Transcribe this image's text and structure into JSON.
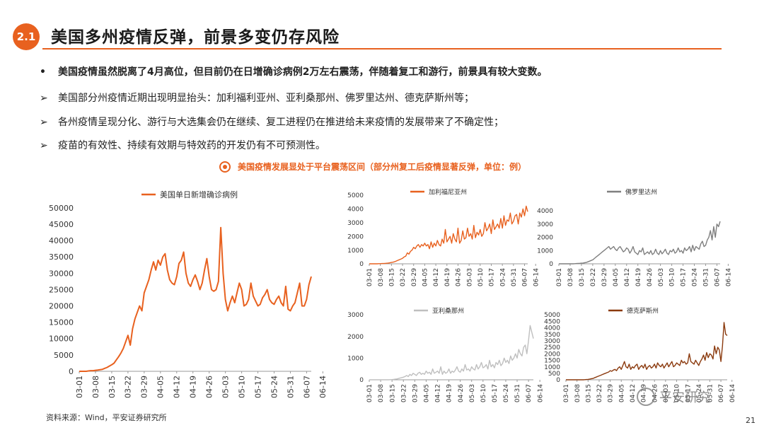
{
  "header": {
    "section_number": "2.1",
    "title": "美国多州疫情反弹，前景多变仍存风险"
  },
  "bullets": {
    "main_mark": "•",
    "main": "美国疫情虽然脱离了4月高位，但目前仍在日增确诊病例2万左右震荡，伴随着复工和游行，前景具有较大变数。",
    "sub_mark": "➢",
    "sub": [
      "美国部分州疫情近期出现明显抬头：加利福利亚州、亚利桑那州、佛罗里达州、德克萨斯州等；",
      "各州疫情呈现分化、游行与大选集会仍在继续、复工进程仍在推进给未来疫情的发展带来了不确定性；",
      "疫苗的有效性、持续有效期与特效药的开发仍有不可预测性。"
    ]
  },
  "chart_heading": "美国疫情发展显处于平台震荡区间（部分州复工后疫情显著反弹，单位：例）",
  "source": "资料来源：Wind，平安证券研究所",
  "page_number": "21",
  "watermark": "平安研究",
  "chart_data": [
    {
      "id": "us",
      "type": "line",
      "title": "",
      "legend": "美国单日新增确诊病例",
      "color": "#e8611f",
      "ylim": [
        0,
        50000
      ],
      "yticks": [
        0,
        5000,
        10000,
        15000,
        20000,
        25000,
        30000,
        35000,
        40000,
        45000,
        50000
      ],
      "xticks": [
        "03-01",
        "03-08",
        "03-15",
        "03-22",
        "03-29",
        "04-05",
        "04-12",
        "04-19",
        "04-26",
        "05-03",
        "05-10",
        "05-17",
        "05-24",
        "05-31",
        "06-07",
        "06-14"
      ],
      "x_start": "03-01",
      "values": [
        0,
        0,
        0,
        0,
        100,
        200,
        200,
        300,
        400,
        500,
        600,
        900,
        1200,
        1600,
        2000,
        2500,
        3500,
        4500,
        5600,
        7000,
        9000,
        11000,
        8000,
        13000,
        16000,
        18000,
        20000,
        18500,
        24000,
        26000,
        28000,
        31000,
        33500,
        31000,
        34000,
        32500,
        35000,
        36000,
        31000,
        28000,
        27000,
        26500,
        29000,
        33000,
        34000,
        36500,
        30000,
        27000,
        26000,
        28000,
        29500,
        27500,
        25000,
        27000,
        31000,
        34500,
        29000,
        25000,
        24500,
        25000,
        27500,
        44000,
        30000,
        22000,
        18500,
        21000,
        23000,
        21000,
        24000,
        27000,
        25000,
        20000,
        20500,
        22000,
        27000,
        23000,
        21500,
        20000,
        20500,
        22500,
        23500,
        25000,
        22000,
        21000,
        20500,
        22000,
        23000,
        21000,
        20000,
        26000,
        19000,
        18500,
        20000,
        21000,
        24000,
        27000,
        20000,
        20000,
        22000,
        26500,
        29000
      ],
      "ylabel": "",
      "xlabel": ""
    },
    {
      "id": "ca",
      "type": "line",
      "legend": "加利福尼亚州",
      "color": "#e8611f",
      "ylim": [
        0,
        5000
      ],
      "yticks": [
        0,
        1000,
        2000,
        3000,
        4000,
        5000
      ],
      "xticks": [
        "03-01",
        "03-08",
        "03-15",
        "03-22",
        "03-29",
        "04-05",
        "04-12",
        "04-19",
        "04-26",
        "05-03",
        "05-10",
        "05-17",
        "05-24",
        "05-31",
        "06-07",
        "06-14"
      ],
      "x_start": "03-01",
      "values": [
        0,
        0,
        0,
        0,
        0,
        0,
        10,
        10,
        20,
        20,
        30,
        40,
        50,
        70,
        100,
        120,
        150,
        200,
        250,
        300,
        350,
        400,
        500,
        550,
        800,
        700,
        900,
        1000,
        1200,
        1100,
        1300,
        1400,
        1200,
        1400,
        1300,
        1500,
        1300,
        1400,
        1100,
        1600,
        1200,
        1500,
        1300,
        1700,
        1400,
        1300,
        1800,
        1500,
        2500,
        1600,
        1800,
        2000,
        1500,
        2200,
        1800,
        1600,
        2600,
        1500,
        1700,
        2400,
        1800,
        1900,
        2600,
        2000,
        2200,
        1800,
        2800,
        1900,
        2300,
        2100,
        2500,
        2000,
        2200,
        3000,
        2400,
        2600,
        2900,
        2200,
        3200,
        2500,
        2700,
        2900,
        2600,
        3300,
        2600,
        3500,
        2800,
        3200,
        3100,
        3700,
        2900,
        3100,
        3500,
        3600,
        2900,
        3700,
        3400,
        4000,
        3500,
        4200,
        3800
      ],
      "ylabel": "",
      "xlabel": ""
    },
    {
      "id": "fl",
      "type": "line",
      "legend": "佛罗里达州",
      "color": "#7f7f7f",
      "ylim": [
        0,
        4000
      ],
      "yticks": [
        0,
        1000,
        2000,
        3000,
        4000
      ],
      "xticks": [
        "03-01",
        "03-08",
        "03-15",
        "03-22",
        "03-29",
        "04-05",
        "04-12",
        "04-19",
        "04-26",
        "05-03",
        "05-10",
        "05-17",
        "05-24",
        "05-31",
        "06-07",
        "06-14"
      ],
      "x_start": "03-01",
      "values": [
        0,
        0,
        0,
        0,
        0,
        0,
        0,
        0,
        0,
        0,
        10,
        20,
        30,
        40,
        50,
        60,
        80,
        100,
        150,
        200,
        250,
        300,
        400,
        500,
        600,
        700,
        800,
        900,
        1000,
        1100,
        1200,
        1300,
        1100,
        1200,
        1300,
        1100,
        1000,
        1200,
        1300,
        1100,
        900,
        1000,
        1200,
        1100,
        800,
        1000,
        1300,
        900,
        800,
        700,
        1000,
        900,
        1200,
        700,
        800,
        900,
        750,
        1000,
        700,
        800,
        1100,
        800,
        700,
        1000,
        750,
        900,
        1100,
        800,
        700,
        1000,
        900,
        1100,
        800,
        900,
        1200,
        900,
        1000,
        800,
        1200,
        1000,
        1100,
        1300,
        900,
        1400,
        1000,
        1300,
        1200,
        1100,
        1500,
        1700,
        1300,
        1400,
        1800,
        2000,
        2500,
        1800,
        2800,
        2000,
        3000,
        2800,
        3200
      ],
      "ylabel": "",
      "xlabel": ""
    },
    {
      "id": "az",
      "type": "line",
      "legend": "亚利桑那州",
      "color": "#bfbfbf",
      "ylim": [
        0,
        3000
      ],
      "yticks": [
        0,
        1000,
        2000,
        3000
      ],
      "xticks": [
        "03-01",
        "03-08",
        "03-15",
        "03-22",
        "03-29",
        "04-05",
        "04-12",
        "04-19",
        "04-26",
        "05-03",
        "05-10",
        "05-17",
        "05-24",
        "05-31",
        "06-07",
        "06-14"
      ],
      "x_start": "03-01",
      "values": [
        0,
        0,
        0,
        0,
        0,
        0,
        0,
        0,
        0,
        0,
        0,
        0,
        0,
        5,
        10,
        20,
        30,
        40,
        60,
        80,
        100,
        120,
        150,
        200,
        150,
        250,
        200,
        300,
        250,
        200,
        300,
        350,
        250,
        300,
        250,
        400,
        300,
        350,
        250,
        500,
        300,
        350,
        400,
        300,
        600,
        250,
        400,
        300,
        350,
        500,
        300,
        400,
        350,
        450,
        600,
        400,
        350,
        500,
        400,
        700,
        450,
        500,
        400,
        600,
        500,
        450,
        700,
        500,
        600,
        800,
        550,
        600,
        700,
        500,
        900,
        600,
        700,
        550,
        800,
        700,
        900,
        650,
        750,
        1000,
        800,
        900,
        750,
        1100,
        900,
        1000,
        1200,
        1000,
        1400,
        1200,
        1100,
        1500,
        1600,
        1200,
        1800,
        2500,
        2200,
        1900
      ],
      "ylabel": "",
      "xlabel": ""
    },
    {
      "id": "tx",
      "type": "line",
      "legend": "德克萨斯州",
      "color": "#8b3a0e",
      "ylim": [
        0,
        5000
      ],
      "yticks": [
        0,
        500,
        1000,
        1500,
        2000,
        2500,
        3000,
        3500,
        4000,
        4500,
        5000
      ],
      "xticks": [
        "03-01",
        "03-08",
        "03-15",
        "03-22",
        "03-29",
        "04-05",
        "04-12",
        "04-19",
        "04-26",
        "05-03",
        "05-10",
        "05-17",
        "05-24",
        "05-31",
        "06-07",
        "06-14"
      ],
      "x_start": "03-01",
      "values": [
        0,
        0,
        0,
        0,
        0,
        0,
        0,
        0,
        0,
        0,
        0,
        0,
        10,
        20,
        30,
        50,
        80,
        100,
        150,
        200,
        250,
        300,
        350,
        400,
        450,
        500,
        550,
        600,
        700,
        650,
        750,
        800,
        700,
        900,
        1000,
        800,
        1100,
        1400,
        1000,
        900,
        1200,
        800,
        1000,
        900,
        1100,
        1200,
        800,
        1000,
        1100,
        900,
        1200,
        800,
        1000,
        1100,
        900,
        1000,
        1200,
        900,
        1300,
        1100,
        1000,
        1200,
        900,
        1100,
        1300,
        1000,
        1200,
        1400,
        1000,
        1100,
        1300,
        1200,
        1100,
        1500,
        1300,
        1400,
        1200,
        1300,
        2000,
        1400,
        1300,
        1200,
        1500,
        1300,
        1100,
        1400,
        1600,
        1900,
        1500,
        2100,
        1700,
        2000,
        1900,
        1600,
        2600,
        2000,
        2500,
        2300,
        1400,
        2600,
        4400,
        3500,
        3400
      ],
      "ylabel": "",
      "xlabel": ""
    }
  ]
}
